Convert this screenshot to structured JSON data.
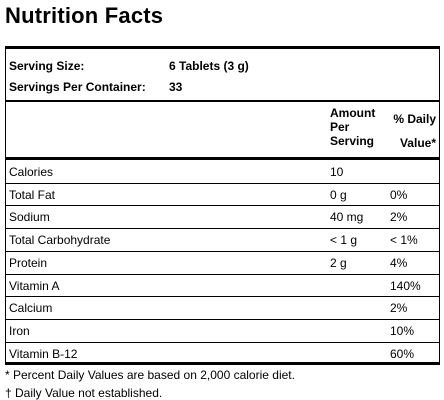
{
  "header": {
    "title": "Nutrition Facts"
  },
  "serving": [
    {
      "label": "Serving Size:",
      "value": "6 Tablets (3 g)"
    },
    {
      "label": "Servings Per Container:",
      "value": "33"
    }
  ],
  "table": {
    "amount_header": [
      "Amount",
      "Per",
      "Serving"
    ],
    "dv_header": [
      "% Daily",
      "Value*"
    ],
    "rows": [
      {
        "name": "Calories",
        "amount": "10"
      },
      {
        "name": "Total Fat",
        "amount": "0 g",
        "dv": "0%"
      },
      {
        "name": "Sodium",
        "amount": "40 mg",
        "dv": "2%"
      },
      {
        "name": "Total Carbohydrate",
        "amount": "< 1 g",
        "dv": "< 1%"
      },
      {
        "name": "Protein",
        "amount": "2 g",
        "dv": "4%"
      },
      {
        "name": "Vitamin A",
        "dv": "140%"
      },
      {
        "name": "Calcium",
        "dv": "2%"
      },
      {
        "name": "Iron",
        "dv": "10%"
      },
      {
        "name": "Vitamin B-12",
        "dv": "60%"
      }
    ]
  },
  "footnotes": [
    "* Percent Daily Values are based on 2,000 calorie diet.",
    "† Daily Value not established."
  ]
}
